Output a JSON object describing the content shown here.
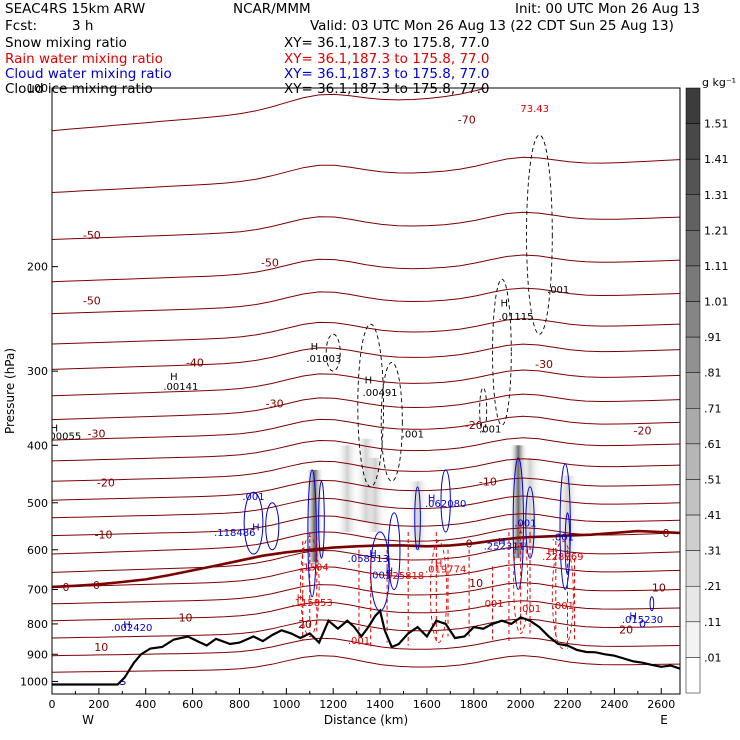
{
  "header": {
    "model": "SEAC4RS 15km ARW",
    "center": "NCAR/MMM",
    "init": "Init: 00 UTC Mon 26 Aug 13",
    "fcst_label": "Fcst:",
    "fcst_value": "3 h",
    "valid": "Valid: 03 UTC Mon 26 Aug 13 (22 CDT Sun 25 Aug 13)"
  },
  "fields": [
    {
      "name": "Snow mixing ratio",
      "xy": "XY=   36.1,187.3 to 175.8, 77.0",
      "color": "#000000"
    },
    {
      "name": "Rain water mixing ratio",
      "xy": "XY=   36.1,187.3 to 175.8, 77.0",
      "color": "#e00000"
    },
    {
      "name": "Cloud water mixing ratio",
      "xy": "XY=   36.1,187.3 to 175.8, 77.0",
      "color": "#0000cc"
    },
    {
      "name": "Cloud ice mixing ratio",
      "xy": "XY=   36.1,187.3 to 175.8, 77.0",
      "color": "#000000"
    }
  ],
  "colors": {
    "temperature": "#800000",
    "freezing_line": "#7a0000",
    "rain": "#e00000",
    "cloud_water": "#0000cc",
    "cloud_ice": "#000000",
    "terrain": "#000000"
  },
  "chart_data": {
    "type": "cross-section contour",
    "xlabel": "Distance (km)",
    "ylabel": "Pressure (hPa)",
    "xlim": [
      0,
      2680
    ],
    "ylim": [
      1050,
      100
    ],
    "y_scale": "log-pressure",
    "x_ticks": [
      "0",
      "200",
      "400",
      "600",
      "800",
      "1000",
      "1200",
      "1400",
      "1600",
      "1800",
      "2000",
      "2200",
      "2400",
      "2600"
    ],
    "y_ticks": [
      "100",
      "200",
      "300",
      "400",
      "500",
      "600",
      "700",
      "800",
      "900",
      "1000"
    ],
    "x_end_labels": {
      "left": "W",
      "right": "E"
    },
    "colorbar": {
      "unit": "g kg⁻¹",
      "labels": [
        "1.51",
        "1.41",
        "1.31",
        "1.21",
        "1.11",
        "1.01",
        ".91",
        ".81",
        ".71",
        ".61",
        ".51",
        ".41",
        ".31",
        ".21",
        ".11",
        ".01"
      ]
    },
    "temperature_labels": [
      {
        "text": "-70",
        "x": 1770,
        "p": 113
      },
      {
        "text": "-50",
        "x": 170,
        "p": 177
      },
      {
        "text": "-50",
        "x": 930,
        "p": 197
      },
      {
        "text": "-50",
        "x": 170,
        "p": 228
      },
      {
        "text": "-40",
        "x": 610,
        "p": 290
      },
      {
        "text": "-30",
        "x": 950,
        "p": 340
      },
      {
        "text": "-30",
        "x": 2100,
        "p": 292
      },
      {
        "text": "-30",
        "x": 190,
        "p": 382
      },
      {
        "text": "-20",
        "x": 1800,
        "p": 370
      },
      {
        "text": "-20",
        "x": 2520,
        "p": 378
      },
      {
        "text": "-20",
        "x": 230,
        "p": 462
      },
      {
        "text": "-10",
        "x": 1860,
        "p": 460
      },
      {
        "text": "-10",
        "x": 220,
        "p": 566
      },
      {
        "text": "0",
        "x": 1780,
        "p": 585
      },
      {
        "text": "0",
        "x": 2620,
        "p": 562
      },
      {
        "text": "0",
        "x": 60,
        "p": 693
      },
      {
        "text": "0",
        "x": 190,
        "p": 688
      },
      {
        "text": "10",
        "x": 1810,
        "p": 683
      },
      {
        "text": "10",
        "x": 2590,
        "p": 695
      },
      {
        "text": "10",
        "x": 570,
        "p": 780
      },
      {
        "text": "10",
        "x": 210,
        "p": 875
      },
      {
        "text": "20",
        "x": 1080,
        "p": 800
      },
      {
        "text": "20",
        "x": 2450,
        "p": 818
      }
    ],
    "maxima": [
      {
        "text": ".00141",
        "x": 550,
        "p": 318,
        "field": "snow"
      },
      {
        "text": ".00055",
        "x": 50,
        "p": 385,
        "field": "snow"
      },
      {
        "text": ".01003",
        "x": 1160,
        "p": 285,
        "field": "ice"
      },
      {
        "text": ".00491",
        "x": 1400,
        "p": 325,
        "field": "ice"
      },
      {
        "text": ".01115",
        "x": 1980,
        "p": 242,
        "field": "ice"
      },
      {
        "text": ".118486",
        "x": 780,
        "p": 560,
        "field": "cloud"
      },
      {
        "text": ".062080",
        "x": 1680,
        "p": 500,
        "field": "cloud"
      },
      {
        "text": ".058513",
        "x": 1350,
        "p": 620,
        "field": "cloud"
      },
      {
        "text": ".252311",
        "x": 1930,
        "p": 590,
        "field": "cloud"
      },
      {
        "text": ".002420",
        "x": 340,
        "p": 810,
        "field": "cloud"
      },
      {
        "text": ".015230",
        "x": 2520,
        "p": 785,
        "field": "cloud"
      },
      {
        "text": ".1504",
        "x": 1120,
        "p": 640,
        "field": "rain"
      },
      {
        "text": ".025818",
        "x": 1500,
        "p": 662,
        "field": "rain"
      },
      {
        "text": ".019774",
        "x": 1680,
        "p": 645,
        "field": "rain"
      },
      {
        "text": ".115853",
        "x": 1110,
        "p": 735,
        "field": "rain"
      },
      {
        "text": ".228869",
        "x": 2180,
        "p": 615,
        "field": "rain"
      }
    ],
    "contour_labels": [
      {
        "text": "73.43",
        "x": 2060,
        "p": 108,
        "color": "#e00000"
      },
      {
        "text": ".001",
        "x": 2160,
        "p": 218,
        "color": "#000000"
      },
      {
        "text": ".001",
        "x": 1870,
        "p": 375,
        "color": "#000000"
      },
      {
        "text": ".001",
        "x": 1540,
        "p": 382,
        "color": "#000000"
      },
      {
        "text": ".001",
        "x": 860,
        "p": 487,
        "color": "#0000cc"
      },
      {
        "text": ".001",
        "x": 2020,
        "p": 540,
        "color": "#0000cc"
      },
      {
        "text": ".001",
        "x": 2180,
        "p": 570,
        "color": "#0000cc"
      },
      {
        "text": ".001",
        "x": 1400,
        "p": 660,
        "color": "#0000cc"
      },
      {
        "text": ".001",
        "x": 1880,
        "p": 738,
        "color": "#e00000"
      },
      {
        "text": ".001",
        "x": 2040,
        "p": 752,
        "color": "#e00000"
      },
      {
        "text": ".001",
        "x": 2180,
        "p": 743,
        "color": "#e00000"
      },
      {
        "text": ".001",
        "x": 1310,
        "p": 852,
        "color": "#e00000"
      }
    ],
    "h_markers": [
      {
        "x": 520,
        "p": 306,
        "color": "#000000"
      },
      {
        "x": 10,
        "p": 373,
        "color": "#000000"
      },
      {
        "x": 1120,
        "p": 272,
        "color": "#000000"
      },
      {
        "x": 1350,
        "p": 310,
        "color": "#000000"
      },
      {
        "x": 1930,
        "p": 230,
        "color": "#000000"
      },
      {
        "x": 870,
        "p": 548,
        "color": "#0000cc"
      },
      {
        "x": 1620,
        "p": 490,
        "color": "#0000cc"
      },
      {
        "x": 1370,
        "p": 607,
        "color": "#0000cc"
      },
      {
        "x": 1440,
        "p": 650,
        "color": "#0000cc"
      },
      {
        "x": 1920,
        "p": 580,
        "color": "#0000cc"
      },
      {
        "x": 320,
        "p": 800,
        "color": "#0000cc"
      },
      {
        "x": 2480,
        "p": 775,
        "color": "#0000cc"
      },
      {
        "x": 1650,
        "p": 632,
        "color": "#e00000"
      },
      {
        "x": 1060,
        "p": 722,
        "color": "#e00000"
      },
      {
        "x": 2130,
        "p": 603,
        "color": "#e00000"
      }
    ],
    "terrain": {
      "x": [
        0,
        100,
        200,
        280,
        310,
        350,
        380,
        420,
        470,
        520,
        580,
        620,
        660,
        700,
        760,
        800,
        860,
        900,
        940,
        980,
        1020,
        1060,
        1100,
        1140,
        1180,
        1220,
        1260,
        1290,
        1320,
        1350,
        1380,
        1400,
        1420,
        1450,
        1480,
        1520,
        1560,
        1600,
        1640,
        1680,
        1720,
        1760,
        1800,
        1840,
        1880,
        1920,
        1960,
        2000,
        2040,
        2080,
        2120,
        2160,
        2200,
        2240,
        2280,
        2320,
        2360,
        2400,
        2440,
        2480,
        2520,
        2560,
        2600,
        2640,
        2680
      ],
      "p": [
        1012,
        1012,
        1012,
        1012,
        985,
        930,
        900,
        880,
        875,
        850,
        840,
        855,
        870,
        848,
        865,
        860,
        840,
        855,
        835,
        820,
        830,
        845,
        830,
        860,
        790,
        815,
        790,
        810,
        840,
        810,
        775,
        760,
        820,
        875,
        865,
        830,
        810,
        840,
        790,
        800,
        845,
        840,
        810,
        815,
        800,
        790,
        800,
        780,
        790,
        810,
        840,
        865,
        870,
        885,
        892,
        893,
        900,
        905,
        915,
        925,
        930,
        938,
        945,
        940,
        952
      ]
    },
    "freezing_level": {
      "x": [
        0,
        100,
        200,
        300,
        400,
        500,
        600,
        700,
        800,
        900,
        1000,
        1100,
        1200,
        1300,
        1400,
        1500,
        1600,
        1700,
        1800,
        1900,
        2000,
        2100,
        2200,
        2300,
        2400,
        2500,
        2600,
        2680
      ],
      "p": [
        693,
        690,
        686,
        680,
        673,
        662,
        650,
        638,
        626,
        614,
        606,
        600,
        595,
        592,
        590,
        590,
        592,
        590,
        585,
        578,
        572,
        570,
        568,
        566,
        562,
        558,
        560,
        562
      ]
    },
    "temperature_isotherms_p_at_x0": [
      118,
      150,
      180,
      212,
      240,
      270,
      298,
      330,
      362,
      392,
      425,
      460,
      495,
      530,
      568,
      610,
      655,
      693,
      740,
      790,
      845,
      905,
      965
    ],
    "temperature_isotherms_p_at_xmax": [
      96,
      132,
      165,
      195,
      222,
      250,
      276,
      305,
      335,
      366,
      398,
      432,
      466,
      500,
      535,
      562,
      605,
      650,
      700,
      752,
      808,
      870,
      935
    ]
  }
}
